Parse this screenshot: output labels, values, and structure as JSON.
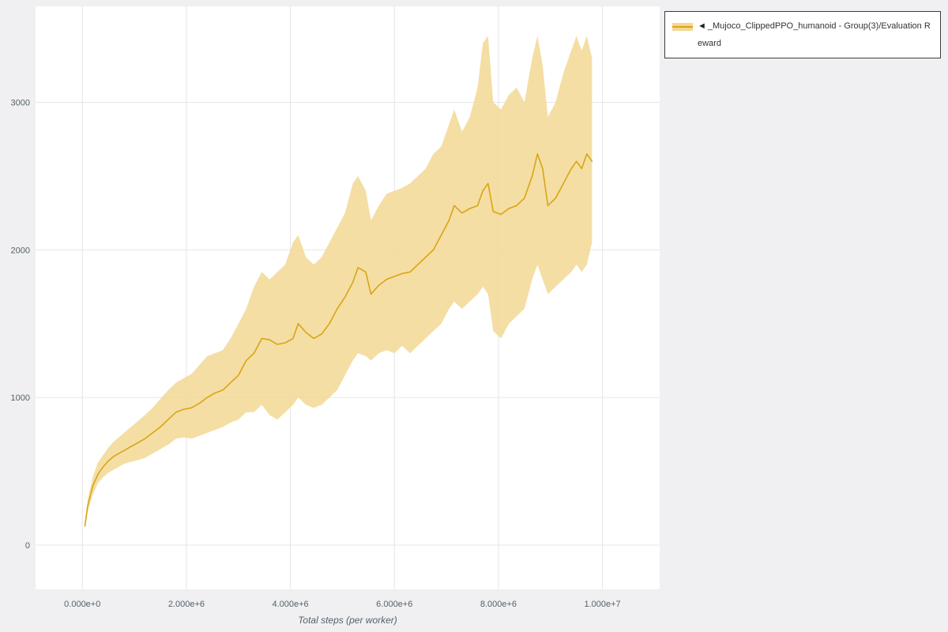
{
  "legend": {
    "arrow": "◄",
    "label": "_Mujoco_ClippedPPO_humanoid - Group(3)/Evaluation Reward"
  },
  "chart_data": {
    "type": "line",
    "title": "",
    "xlabel": "Total steps (per worker)",
    "ylabel": "",
    "x_unit": "steps, values in millions (e6)",
    "xlim": [
      -0.9,
      11.1
    ],
    "ylim": [
      -300,
      3650
    ],
    "grid": true,
    "legend_position": "top-right",
    "x_ticks": {
      "values": [
        0,
        2,
        4,
        6,
        8,
        10
      ],
      "labels": [
        "0.000e+0",
        "2.000e+6",
        "4.000e+6",
        "6.000e+6",
        "8.000e+6",
        "1.000e+7"
      ]
    },
    "y_ticks": {
      "values": [
        0,
        1000,
        2000,
        3000
      ],
      "labels": [
        "0",
        "1000",
        "2000",
        "3000"
      ]
    },
    "colors": {
      "line": "#d9a514",
      "band": "#f2d894",
      "grid": "#e6e6e8",
      "plot_bg": "#ffffff",
      "page_bg": "#f0f0f2",
      "tick_text": "#556068"
    },
    "series": [
      {
        "name": "_Mujoco_ClippedPPO_humanoid - Group(3)/Evaluation Reward",
        "x_e6": [
          0.05,
          0.1,
          0.2,
          0.3,
          0.4,
          0.5,
          0.6,
          0.7,
          0.8,
          0.9,
          1.0,
          1.1,
          1.2,
          1.35,
          1.5,
          1.65,
          1.8,
          1.95,
          2.1,
          2.25,
          2.4,
          2.55,
          2.7,
          2.85,
          3.0,
          3.15,
          3.3,
          3.45,
          3.6,
          3.75,
          3.9,
          4.05,
          4.15,
          4.3,
          4.45,
          4.6,
          4.75,
          4.9,
          5.05,
          5.2,
          5.3,
          5.45,
          5.55,
          5.7,
          5.85,
          6.0,
          6.15,
          6.3,
          6.45,
          6.6,
          6.75,
          6.9,
          7.05,
          7.15,
          7.3,
          7.45,
          7.6,
          7.7,
          7.8,
          7.9,
          8.05,
          8.2,
          8.35,
          8.5,
          8.65,
          8.75,
          8.85,
          8.95,
          9.1,
          9.25,
          9.4,
          9.5,
          9.6,
          9.7,
          9.8
        ],
        "mean": [
          130,
          260,
          400,
          480,
          530,
          570,
          600,
          620,
          640,
          660,
          680,
          700,
          720,
          760,
          800,
          850,
          900,
          920,
          930,
          960,
          1000,
          1030,
          1050,
          1100,
          1150,
          1250,
          1300,
          1400,
          1390,
          1360,
          1370,
          1400,
          1500,
          1440,
          1400,
          1430,
          1500,
          1600,
          1680,
          1780,
          1880,
          1850,
          1700,
          1760,
          1800,
          1820,
          1840,
          1850,
          1900,
          1950,
          2000,
          2100,
          2200,
          2300,
          2250,
          2280,
          2300,
          2400,
          2450,
          2260,
          2240,
          2280,
          2300,
          2350,
          2500,
          2650,
          2550,
          2300,
          2350,
          2450,
          2550,
          2600,
          2550,
          2650,
          2600
        ],
        "lower": [
          110,
          220,
          340,
          420,
          460,
          490,
          510,
          530,
          550,
          560,
          570,
          580,
          590,
          620,
          650,
          680,
          720,
          730,
          720,
          740,
          760,
          780,
          800,
          830,
          850,
          900,
          900,
          950,
          880,
          850,
          900,
          950,
          1000,
          950,
          930,
          950,
          1000,
          1050,
          1150,
          1250,
          1300,
          1280,
          1250,
          1300,
          1320,
          1300,
          1350,
          1300,
          1350,
          1400,
          1450,
          1500,
          1600,
          1650,
          1600,
          1650,
          1700,
          1750,
          1700,
          1450,
          1400,
          1500,
          1550,
          1600,
          1800,
          1900,
          1800,
          1700,
          1750,
          1800,
          1850,
          1900,
          1850,
          1900,
          2050
        ],
        "upper": [
          150,
          300,
          460,
          560,
          610,
          660,
          700,
          730,
          760,
          790,
          820,
          850,
          880,
          930,
          990,
          1050,
          1100,
          1130,
          1160,
          1220,
          1280,
          1300,
          1320,
          1400,
          1500,
          1600,
          1750,
          1850,
          1800,
          1850,
          1900,
          2050,
          2100,
          1950,
          1900,
          1950,
          2050,
          2150,
          2250,
          2450,
          2500,
          2400,
          2200,
          2300,
          2380,
          2400,
          2420,
          2450,
          2500,
          2550,
          2650,
          2700,
          2850,
          2950,
          2800,
          2900,
          3100,
          3400,
          3450,
          3000,
          2950,
          3050,
          3100,
          3000,
          3300,
          3450,
          3250,
          2900,
          3000,
          3200,
          3350,
          3450,
          3350,
          3450,
          3300
        ]
      }
    ]
  }
}
